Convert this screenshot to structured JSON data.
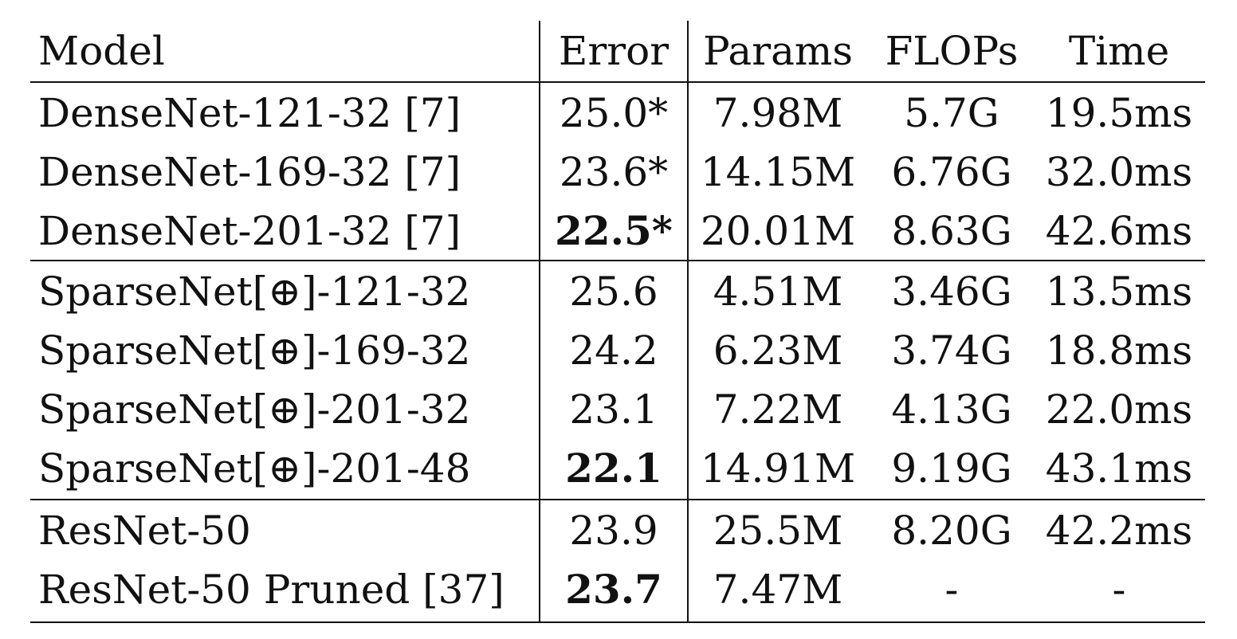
{
  "table": {
    "headers": [
      "Model",
      "Error",
      "Params",
      "FLOPs",
      "Time"
    ],
    "rows": [
      {
        "model": "DenseNet-121-32 [7]",
        "error": "25.0*",
        "params": "7.98M",
        "flops": "5.7G",
        "time": "19.5ms",
        "error_bold": false
      },
      {
        "model": "DenseNet-169-32 [7]",
        "error": "23.6*",
        "params": "14.15M",
        "flops": "6.76G",
        "time": "32.0ms",
        "error_bold": false
      },
      {
        "model": "DenseNet-201-32 [7]",
        "error": "22.5*",
        "params": "20.01M",
        "flops": "8.63G",
        "time": "42.6ms",
        "error_bold": true
      },
      {
        "model": "SparseNet[⊕]-121-32",
        "error": "25.6",
        "params": "4.51M",
        "flops": "3.46G",
        "time": "13.5ms",
        "error_bold": false
      },
      {
        "model": "SparseNet[⊕]-169-32",
        "error": "24.2",
        "params": "6.23M",
        "flops": "3.74G",
        "time": "18.8ms",
        "error_bold": false
      },
      {
        "model": "SparseNet[⊕]-201-32",
        "error": "23.1",
        "params": "7.22M",
        "flops": "4.13G",
        "time": "22.0ms",
        "error_bold": false
      },
      {
        "model": "SparseNet[⊕]-201-48",
        "error": "22.1",
        "params": "14.91M",
        "flops": "9.19G",
        "time": "43.1ms",
        "error_bold": true
      },
      {
        "model": "ResNet-50",
        "error": "23.9",
        "params": "25.5M",
        "flops": "8.20G",
        "time": "42.2ms",
        "error_bold": false
      },
      {
        "model": "ResNet-50 Pruned [37]",
        "error": "23.7",
        "params": "7.47M",
        "flops": "-",
        "time": "-",
        "error_bold": true
      }
    ]
  }
}
